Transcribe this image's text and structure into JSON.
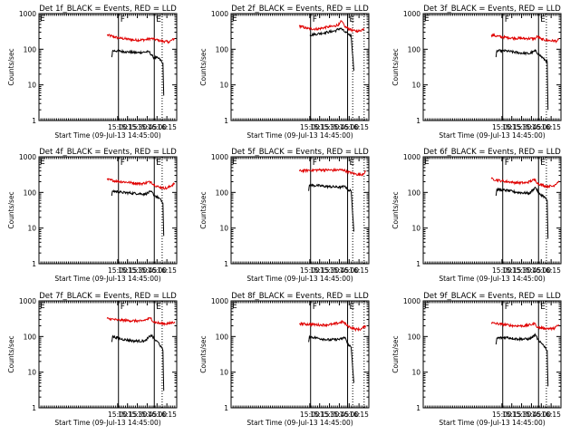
{
  "chart_data": {
    "type": "line",
    "figure": "3x3 grid of detector count-rate light curves",
    "xlabel": "Start Time (09-Jul-13 14:45:00)",
    "ylabel": "Counts/sec",
    "ylim": [
      1,
      1000
    ],
    "yscale": "log",
    "y_ticks": [
      "1",
      "10",
      "100",
      "1000"
    ],
    "xlim": [
      13.0,
      16.5
    ],
    "x_ticks": [
      "15:00",
      "15:15",
      "15:30",
      "15:45",
      "16:00",
      "16:15"
    ],
    "x_tick_values": [
      15.0,
      15.25,
      15.5,
      15.75,
      16.0,
      16.25
    ],
    "series_legend": [
      {
        "name": "Events",
        "color": "#000000"
      },
      {
        "name": "LLD",
        "color": "#e00000"
      }
    ],
    "markers": {
      "F_label": "F",
      "E_label": "E",
      "F_left_label": "F",
      "E_left_label": "E"
    },
    "panels": [
      {
        "title": "Det 1f_BLACK = Events, RED = LLD",
        "solid_lines": [
          15.02,
          15.93
        ],
        "dotted_lines": [
          16.13
        ],
        "red": [
          [
            14.73,
            250
          ],
          [
            15.0,
            210
          ],
          [
            15.2,
            195
          ],
          [
            15.45,
            180
          ],
          [
            15.7,
            185
          ],
          [
            15.85,
            200
          ],
          [
            15.95,
            190
          ],
          [
            16.1,
            170
          ],
          [
            16.3,
            160
          ],
          [
            16.45,
            200
          ]
        ],
        "black": [
          [
            14.85,
            60
          ],
          [
            14.87,
            90
          ],
          [
            15.0,
            90
          ],
          [
            15.2,
            85
          ],
          [
            15.5,
            80
          ],
          [
            15.8,
            85
          ],
          [
            15.9,
            60
          ],
          [
            16.05,
            55
          ],
          [
            16.15,
            40
          ],
          [
            16.17,
            5
          ]
        ]
      },
      {
        "title": "Det 2f_BLACK = Events, RED = LLD",
        "solid_lines": [
          15.02,
          15.96
        ],
        "dotted_lines": [
          16.09,
          16.38
        ],
        "red": [
          [
            14.73,
            450
          ],
          [
            14.95,
            380
          ],
          [
            15.2,
            370
          ],
          [
            15.45,
            420
          ],
          [
            15.6,
            440
          ],
          [
            15.75,
            500
          ],
          [
            15.8,
            620
          ],
          [
            15.9,
            420
          ],
          [
            16.1,
            330
          ],
          [
            16.25,
            320
          ],
          [
            16.38,
            380
          ]
        ],
        "black": [
          [
            15.0,
            250
          ],
          [
            15.2,
            270
          ],
          [
            15.45,
            300
          ],
          [
            15.65,
            330
          ],
          [
            15.78,
            390
          ],
          [
            15.9,
            300
          ],
          [
            16.05,
            240
          ],
          [
            16.12,
            25
          ]
        ]
      },
      {
        "title": "Det 3f_BLACK = Events, RED = LLD",
        "solid_lines": [
          15.02,
          15.93
        ],
        "dotted_lines": [
          16.13
        ],
        "red": [
          [
            14.73,
            250
          ],
          [
            15.0,
            220
          ],
          [
            15.3,
            205
          ],
          [
            15.6,
            200
          ],
          [
            15.85,
            200
          ],
          [
            15.9,
            230
          ],
          [
            16.0,
            190
          ],
          [
            16.2,
            175
          ],
          [
            16.4,
            170
          ],
          [
            16.45,
            190
          ]
        ],
        "black": [
          [
            14.85,
            60
          ],
          [
            14.87,
            90
          ],
          [
            15.1,
            90
          ],
          [
            15.4,
            80
          ],
          [
            15.7,
            75
          ],
          [
            15.85,
            90
          ],
          [
            15.95,
            70
          ],
          [
            16.05,
            55
          ],
          [
            16.15,
            45
          ],
          [
            16.17,
            2
          ]
        ]
      },
      {
        "title": "Det 4f_BLACK = Events, RED = LLD",
        "solid_lines": [
          15.02,
          15.93
        ],
        "dotted_lines": [
          16.13
        ],
        "red": [
          [
            14.73,
            230
          ],
          [
            15.0,
            205
          ],
          [
            15.3,
            190
          ],
          [
            15.6,
            175
          ],
          [
            15.85,
            200
          ],
          [
            15.9,
            170
          ],
          [
            16.05,
            140
          ],
          [
            16.25,
            130
          ],
          [
            16.45,
            180
          ]
        ],
        "black": [
          [
            14.85,
            80
          ],
          [
            14.87,
            110
          ],
          [
            15.1,
            100
          ],
          [
            15.4,
            95
          ],
          [
            15.7,
            90
          ],
          [
            15.85,
            105
          ],
          [
            15.95,
            80
          ],
          [
            16.05,
            70
          ],
          [
            16.15,
            50
          ],
          [
            16.17,
            6
          ]
        ]
      },
      {
        "title": "Det 5f_BLACK = Events, RED = LLD",
        "solid_lines": [
          15.02,
          15.96
        ],
        "dotted_lines": [
          16.09,
          16.38
        ],
        "red": [
          [
            14.73,
            400
          ],
          [
            15.0,
            420
          ],
          [
            15.3,
            430
          ],
          [
            15.6,
            420
          ],
          [
            15.85,
            430
          ],
          [
            15.95,
            380
          ],
          [
            16.15,
            330
          ],
          [
            16.3,
            310
          ],
          [
            16.42,
            380
          ]
        ],
        "black": [
          [
            14.97,
            110
          ],
          [
            14.99,
            160
          ],
          [
            15.2,
            155
          ],
          [
            15.5,
            145
          ],
          [
            15.8,
            140
          ],
          [
            15.9,
            150
          ],
          [
            15.95,
            120
          ],
          [
            16.05,
            110
          ],
          [
            16.12,
            8
          ]
        ]
      },
      {
        "title": "Det 6f_BLACK = Events, RED = LLD",
        "solid_lines": [
          15.02,
          15.93
        ],
        "dotted_lines": [
          16.13
        ],
        "red": [
          [
            14.73,
            240
          ],
          [
            15.0,
            210
          ],
          [
            15.3,
            190
          ],
          [
            15.6,
            185
          ],
          [
            15.85,
            230
          ],
          [
            15.9,
            180
          ],
          [
            16.1,
            150
          ],
          [
            16.3,
            150
          ],
          [
            16.45,
            210
          ]
        ],
        "black": [
          [
            14.85,
            80
          ],
          [
            14.87,
            120
          ],
          [
            15.1,
            115
          ],
          [
            15.4,
            100
          ],
          [
            15.7,
            95
          ],
          [
            15.85,
            140
          ],
          [
            15.95,
            90
          ],
          [
            16.05,
            80
          ],
          [
            16.15,
            60
          ],
          [
            16.17,
            5
          ]
        ]
      },
      {
        "title": "Det 7f_BLACK = Events, RED = LLD",
        "solid_lines": [
          15.02,
          15.93
        ],
        "dotted_lines": [
          16.13
        ],
        "red": [
          [
            14.73,
            320
          ],
          [
            15.0,
            290
          ],
          [
            15.3,
            280
          ],
          [
            15.6,
            270
          ],
          [
            15.85,
            330
          ],
          [
            15.9,
            260
          ],
          [
            16.1,
            230
          ],
          [
            16.3,
            230
          ],
          [
            16.45,
            260
          ]
        ],
        "black": [
          [
            14.85,
            70
          ],
          [
            14.87,
            100
          ],
          [
            15.1,
            85
          ],
          [
            15.4,
            75
          ],
          [
            15.7,
            75
          ],
          [
            15.85,
            110
          ],
          [
            15.95,
            80
          ],
          [
            16.05,
            65
          ],
          [
            16.15,
            40
          ],
          [
            16.17,
            3
          ]
        ]
      },
      {
        "title": "Det 8f_BLACK = Events, RED = LLD",
        "solid_lines": [
          15.02,
          15.96
        ],
        "dotted_lines": [
          16.09,
          16.38
        ],
        "red": [
          [
            14.73,
            230
          ],
          [
            15.0,
            220
          ],
          [
            15.3,
            210
          ],
          [
            15.6,
            220
          ],
          [
            15.85,
            260
          ],
          [
            15.95,
            200
          ],
          [
            16.15,
            160
          ],
          [
            16.3,
            160
          ],
          [
            16.42,
            200
          ]
        ],
        "black": [
          [
            14.97,
            70
          ],
          [
            14.99,
            100
          ],
          [
            15.2,
            90
          ],
          [
            15.5,
            80
          ],
          [
            15.8,
            85
          ],
          [
            15.9,
            95
          ],
          [
            15.95,
            65
          ],
          [
            16.05,
            50
          ],
          [
            16.12,
            5
          ]
        ]
      },
      {
        "title": "Det 9f_BLACK = Events, RED = LLD",
        "solid_lines": [
          15.02,
          15.93
        ],
        "dotted_lines": [
          16.13
        ],
        "red": [
          [
            14.73,
            240
          ],
          [
            15.0,
            220
          ],
          [
            15.3,
            200
          ],
          [
            15.6,
            200
          ],
          [
            15.85,
            230
          ],
          [
            15.9,
            180
          ],
          [
            16.1,
            170
          ],
          [
            16.3,
            165
          ],
          [
            16.45,
            210
          ]
        ],
        "black": [
          [
            14.85,
            60
          ],
          [
            14.87,
            90
          ],
          [
            15.1,
            95
          ],
          [
            15.4,
            85
          ],
          [
            15.7,
            85
          ],
          [
            15.85,
            110
          ],
          [
            15.95,
            70
          ],
          [
            16.05,
            60
          ],
          [
            16.15,
            40
          ],
          [
            16.17,
            4
          ]
        ]
      }
    ]
  }
}
